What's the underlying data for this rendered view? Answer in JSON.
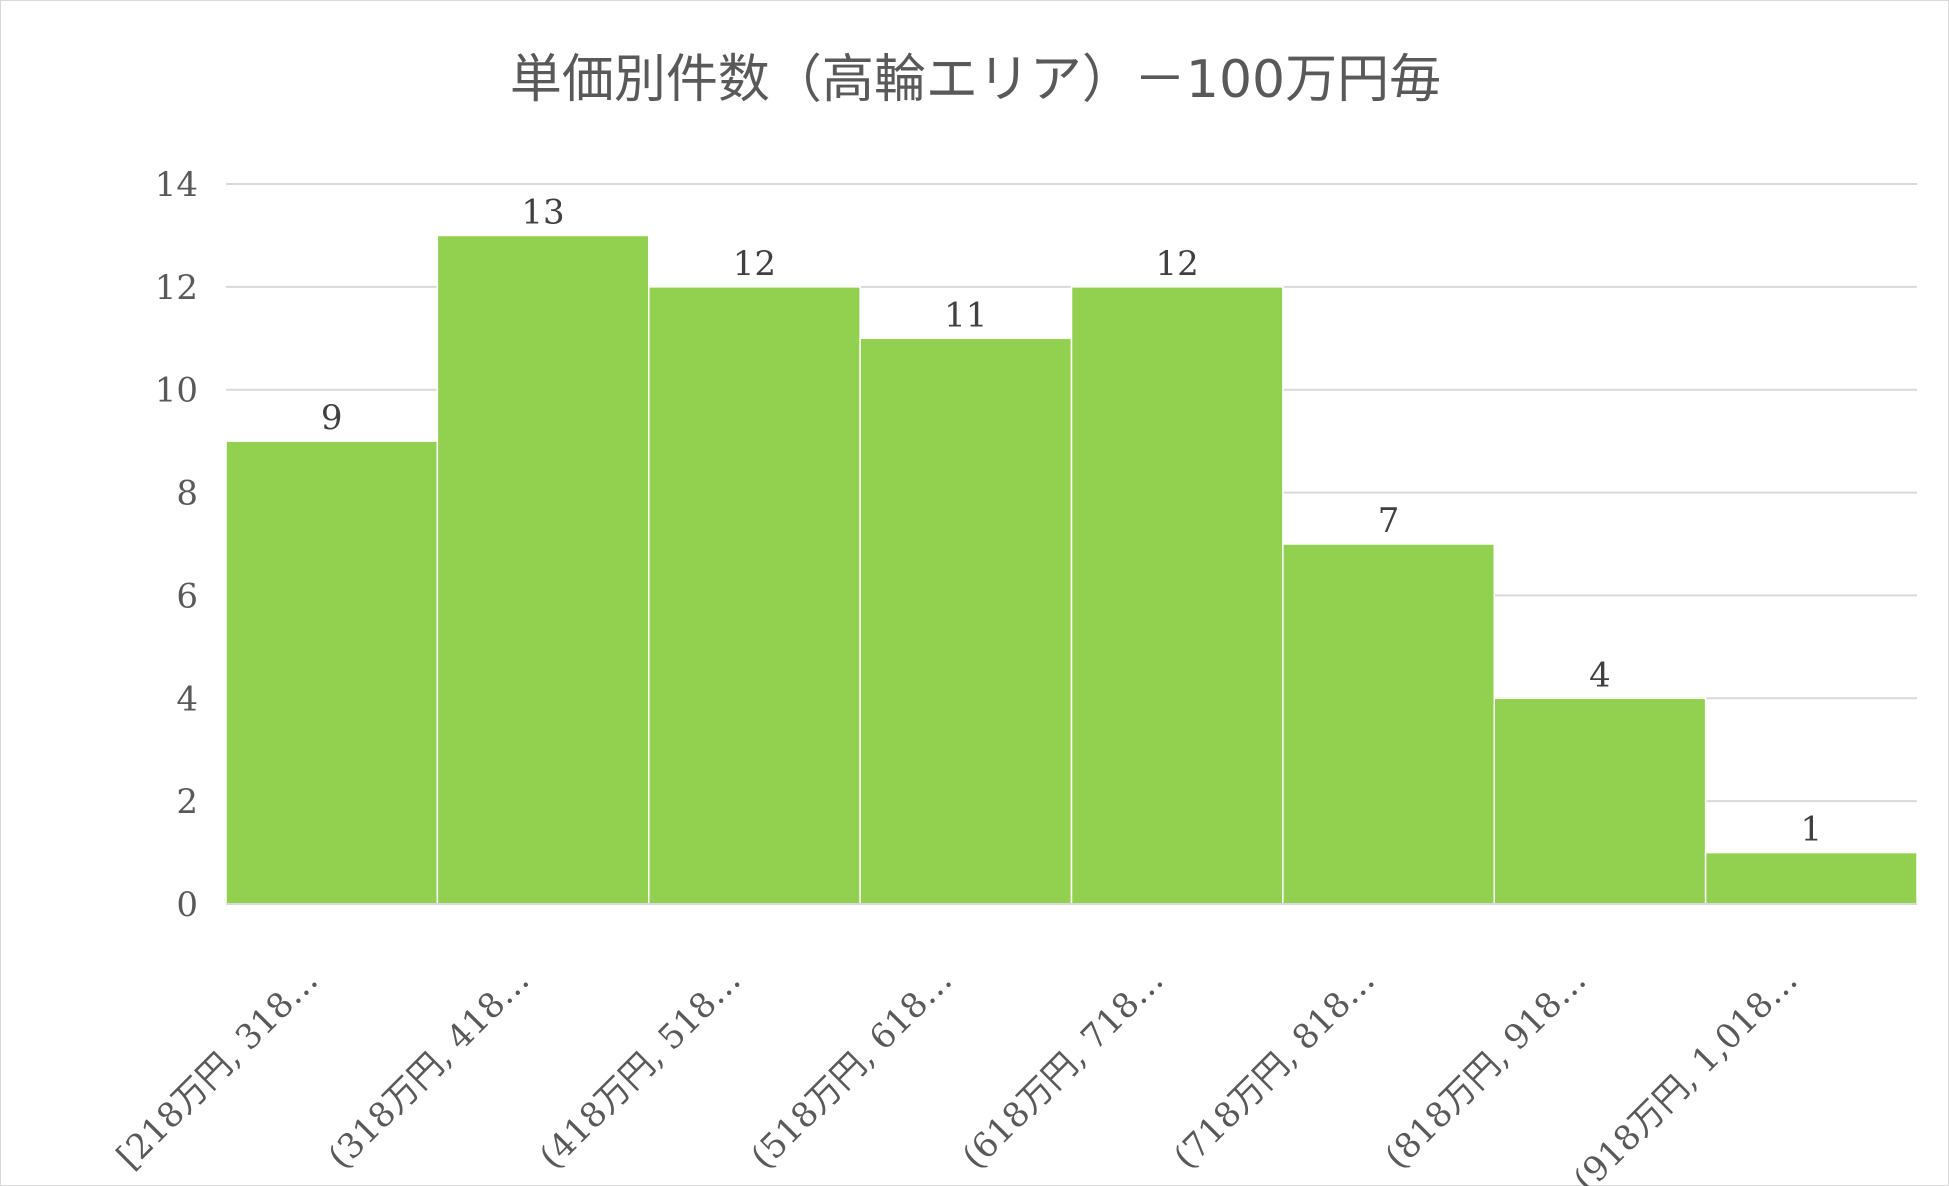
{
  "chart_data": {
    "type": "bar",
    "title": "単価別件数（高輪エリア）－100万円毎",
    "categories": [
      "[218万円, 318…",
      "(318万円, 418…",
      "(418万円, 518…",
      "(518万円, 618…",
      "(618万円, 718…",
      "(718万円, 818…",
      "(818万円, 918…",
      "(918万円, 1,018…"
    ],
    "values": [
      9,
      13,
      12,
      11,
      12,
      7,
      4,
      1
    ],
    "xlabel": "",
    "ylabel": "",
    "ylim": [
      0,
      14
    ],
    "yticks": [
      0,
      2,
      4,
      6,
      8,
      10,
      12,
      14
    ],
    "grid": true,
    "data_labels": true,
    "bar_color": "#92d050",
    "legend": "none"
  }
}
